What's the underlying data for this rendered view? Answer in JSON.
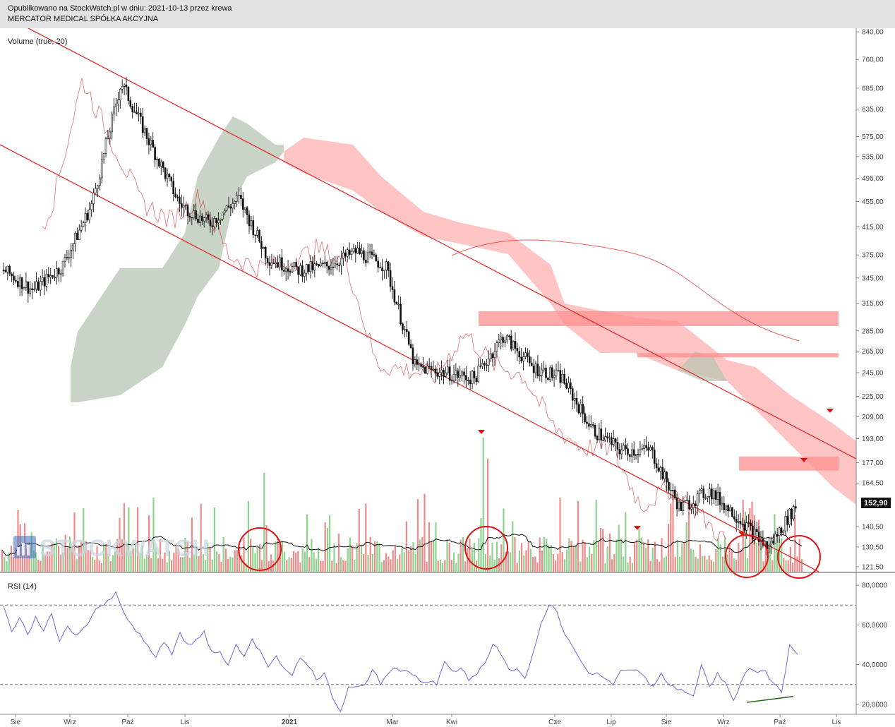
{
  "header": {
    "published": "Opublikowano na StockWatch.pl w dniu: 2021-10-13 przez krewa",
    "company": "MERCATOR MEDICAL SPÓŁKA AKCYJNA"
  },
  "watermark": "STOCKWATCH",
  "colors": {
    "up": "#8fd18f",
    "down": "#f08a8a",
    "line_red": "#e03030",
    "cloud_red": "#ff9c9c",
    "cloud_green": "#b5c6b3",
    "rsi": "#6b6bdc",
    "price_badge": "#111111"
  },
  "chart_data": [
    {
      "type": "candlestick",
      "title": "",
      "price_axis_ticks": [
        "840,00",
        "760,00",
        "685,00",
        "635,00",
        "575,00",
        "535,00",
        "495,00",
        "455,00",
        "415,00",
        "375,00",
        "345,00",
        "315,00",
        "285,00",
        "265,00",
        "245,00",
        "225,00",
        "209,00",
        "193,00",
        "177,00",
        "164,50",
        "152,90",
        "140,50",
        "130,50",
        "121,50"
      ],
      "price_axis_scale": "log",
      "last_price_label": "152,90",
      "x_ticks": [
        "Sie",
        "Wrz",
        "Paź",
        "Lis",
        "2021",
        "Mar",
        "Kwi",
        "Cze",
        "Lip",
        "Sie",
        "Wrz",
        "Paź",
        "Lis"
      ],
      "close_path": [
        [
          "Sie",
          355
        ],
        [
          "Wrz",
          330
        ],
        [
          "Wrz",
          360
        ],
        [
          "Paź",
          450
        ],
        [
          "Paź",
          700
        ],
        [
          "Lis",
          560
        ],
        [
          "Lis",
          450
        ],
        [
          "Lis",
          420
        ],
        [
          "2021",
          460
        ],
        [
          "2021",
          370
        ],
        [
          "Mar",
          355
        ],
        [
          "Mar",
          360
        ],
        [
          "Kwi",
          380
        ],
        [
          "Kwi",
          360
        ],
        [
          "Kwi",
          250
        ],
        [
          "Cze",
          245
        ],
        [
          "Cze",
          240
        ],
        [
          "Lip",
          280
        ],
        [
          "Lip",
          250
        ],
        [
          "Sie",
          240
        ],
        [
          "Sie",
          200
        ],
        [
          "Sie",
          185
        ],
        [
          "Wrz",
          185
        ],
        [
          "Wrz",
          150
        ],
        [
          "Wrz",
          160
        ],
        [
          "Paź",
          145
        ],
        [
          "Paź",
          130
        ],
        [
          "Paź",
          152.9
        ]
      ],
      "horizontal_zones": [
        {
          "from": 290,
          "to": 306
        },
        {
          "from": 259,
          "to": 263
        },
        {
          "from": 172,
          "to": 181
        }
      ],
      "indicators": [
        "Ichimoku cloud",
        "SMA"
      ]
    },
    {
      "type": "bar",
      "title": "Volume (true, 20)",
      "series": "volume",
      "note_ma": "20"
    },
    {
      "type": "line",
      "title": "RSI (14)",
      "y_ticks": [
        "80,0000",
        "60,0000",
        "40,0000",
        "20,0000"
      ],
      "ylim": [
        15,
        85
      ],
      "reference_lines": [
        70,
        30
      ],
      "values": [
        70,
        58,
        63,
        56,
        62,
        58,
        66,
        52,
        58,
        56,
        61,
        64,
        71,
        74,
        79,
        66,
        61,
        55,
        48,
        42,
        50,
        45,
        58,
        49,
        51,
        56,
        48,
        47,
        38,
        51,
        44,
        55,
        46,
        38,
        43,
        37,
        36,
        44,
        38,
        32,
        37,
        25,
        18,
        27,
        29,
        30,
        37,
        32,
        34,
        36,
        38,
        34,
        33,
        30,
        30,
        40,
        36,
        38,
        33,
        35,
        41,
        48,
        44,
        38,
        39,
        32,
        48,
        60,
        68,
        66,
        55,
        48,
        41,
        37,
        36,
        33,
        31,
        36,
        37,
        35,
        32,
        30,
        34,
        31,
        29,
        27,
        25,
        40,
        28,
        36,
        30,
        22,
        33,
        39,
        38,
        35,
        30,
        24,
        48,
        47
      ],
      "divergence_line": {
        "from": 21,
        "to": 24
      }
    }
  ]
}
